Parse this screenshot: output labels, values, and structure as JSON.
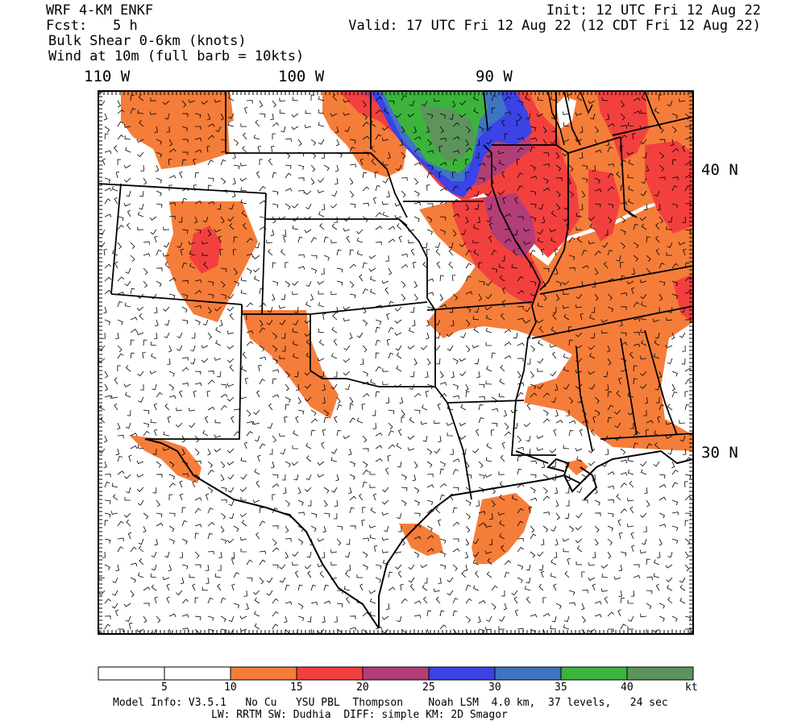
{
  "header": {
    "model": "WRF 4-KM ENKF",
    "fcst_label": "Fcst:",
    "fcst_value": "5 h",
    "field": "Bulk Shear 0-6km (knots)",
    "wind": "Wind at 10m (full barb = 10kts)",
    "init": "Init: 12 UTC Fri 12 Aug 22",
    "valid": "Valid: 17 UTC Fri 12 Aug 22 (12 CDT Fri 12 Aug 22)"
  },
  "map": {
    "lon_labels": [
      "110 W",
      "100 W",
      "90 W"
    ],
    "lat_labels": [
      "40 N",
      "30 N"
    ]
  },
  "colorbar": {
    "ticks": [
      "5",
      "10",
      "15",
      "20",
      "25",
      "30",
      "35",
      "40"
    ],
    "unit": "kt",
    "colors": [
      "#ffffff",
      "#ffffff",
      "#f57d3a",
      "#f2403f",
      "#b23e78",
      "#3b43e6",
      "#3f73c4",
      "#3cb43c",
      "#5c945c"
    ]
  },
  "footer": {
    "line1": "Model Info: V3.5.1   No Cu   YSU PBL  Thompson    Noah LSM  4.0 km,  37 levels,   24 sec",
    "line2": "LW: RRTM SW: Dudhia  DIFF: simple KM: 2D Smagor"
  }
}
